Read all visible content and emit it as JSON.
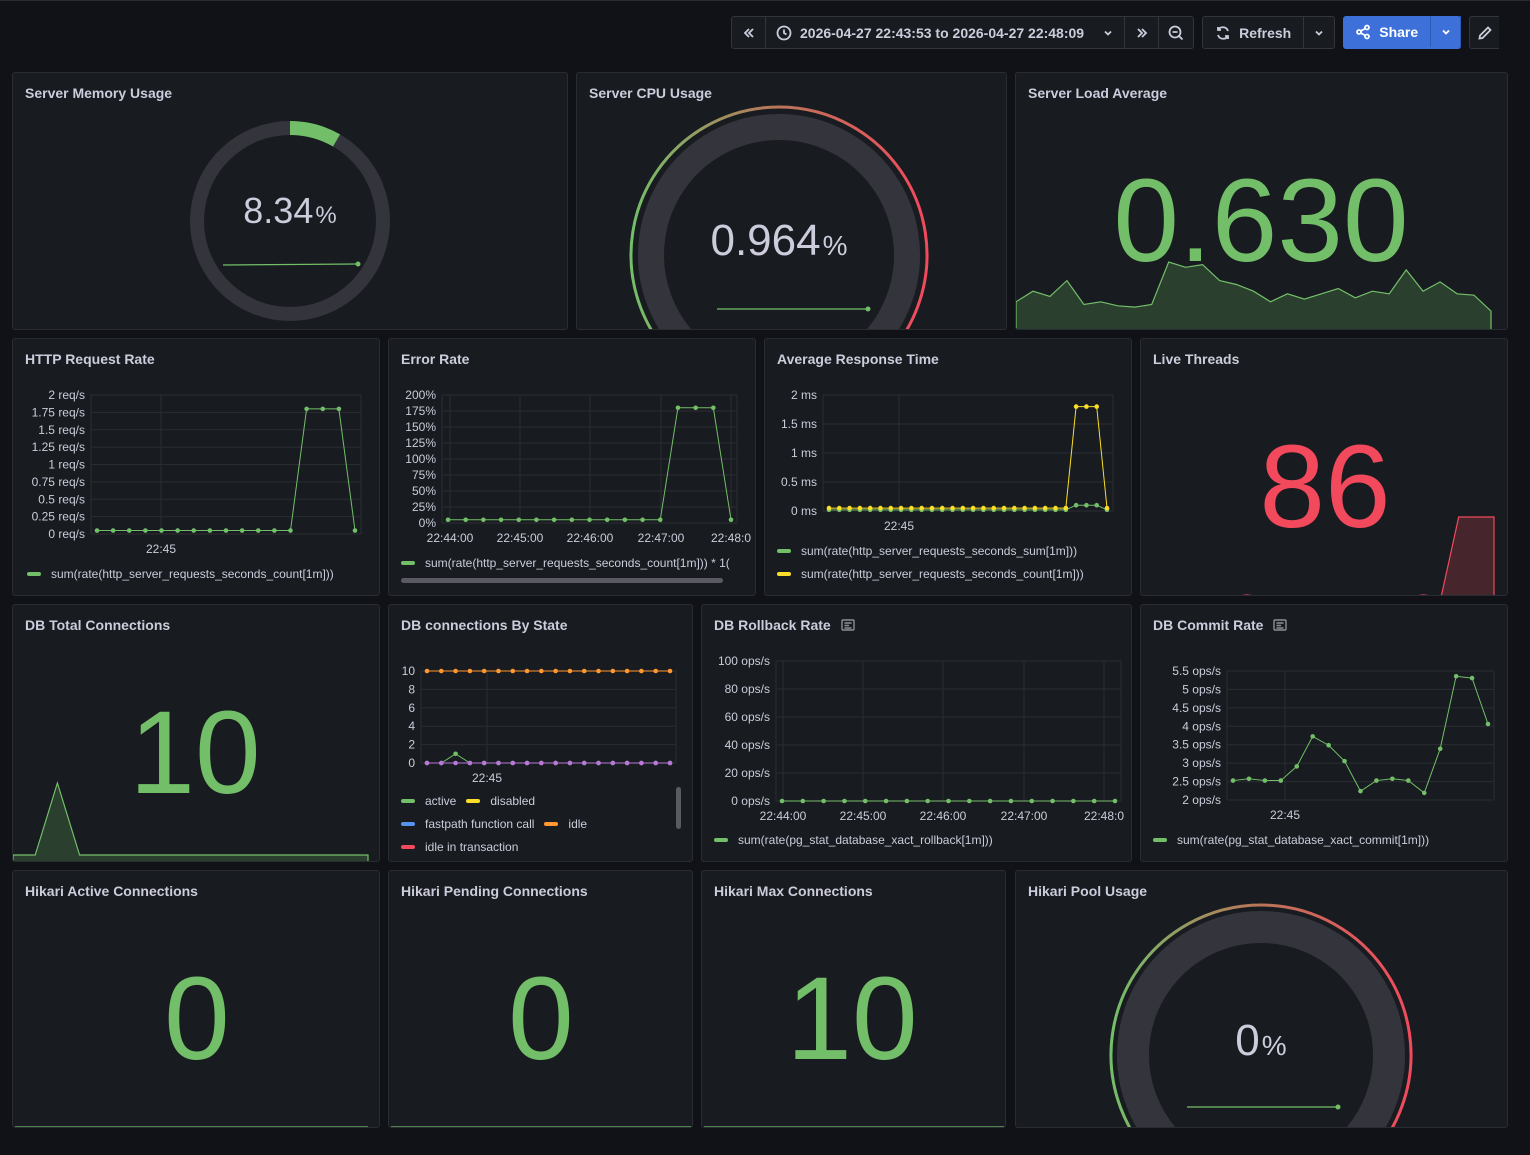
{
  "toolbar": {
    "time_range": "2026-04-27 22:43:53 to 2026-04-27 22:48:09",
    "refresh_label": "Refresh",
    "share_label": "Share",
    "icons": [
      "chevrons-left-icon",
      "clock-icon",
      "chevron-down-icon",
      "chevrons-right-icon",
      "zoom-out-icon",
      "refresh-icon",
      "share-icon",
      "edit-icon"
    ]
  },
  "colors": {
    "green": "#73bf69",
    "red": "#f2495c",
    "yellow": "#fade2a",
    "orange": "#ff9830",
    "purple": "#b877d9",
    "blue": "#5794f2",
    "panel_bg": "#181b1f",
    "page_bg": "#111217"
  },
  "panels": {
    "memory": {
      "title": "Server Memory Usage",
      "value": "8.34",
      "unit": "%",
      "fraction": 0.0834
    },
    "cpu": {
      "title": "Server CPU Usage",
      "value": "0.964",
      "unit": "%",
      "fraction": 0.00964
    },
    "load": {
      "title": "Server Load Average",
      "value": "0.630"
    },
    "http": {
      "title": "HTTP Request Rate",
      "legend": "sum(rate(http_server_requests_seconds_count[1m]))"
    },
    "error": {
      "title": "Error Rate",
      "legend": "sum(rate(http_server_requests_seconds_count[1m])) * 1("
    },
    "resp": {
      "title": "Average Response Time",
      "legend1": "sum(rate(http_server_requests_seconds_sum[1m]))",
      "legend2": "sum(rate(http_server_requests_seconds_count[1m]))"
    },
    "threads": {
      "title": "Live Threads",
      "value": "86"
    },
    "dbtotal": {
      "title": "DB Total Connections",
      "value": "10"
    },
    "dbstate": {
      "title": "DB connections By State",
      "legend": {
        "active": "active",
        "disabled": "disabled",
        "fastpath": "fastpath function call",
        "idle": "idle",
        "idle_tx": "idle in transaction"
      }
    },
    "rollback": {
      "title": "DB Rollback Rate",
      "legend": "sum(rate(pg_stat_database_xact_rollback[1m]))"
    },
    "commit": {
      "title": "DB Commit Rate",
      "legend": "sum(rate(pg_stat_database_xact_commit[1m]))"
    },
    "hikari_active": {
      "title": "Hikari Active Connections",
      "value": "0"
    },
    "hikari_pending": {
      "title": "Hikari Pending Connections",
      "value": "0"
    },
    "hikari_max": {
      "title": "Hikari Max Connections",
      "value": "10"
    },
    "hikari_pool": {
      "title": "Hikari Pool Usage",
      "value": "0",
      "unit": "%",
      "fraction": 0
    }
  },
  "chart_data": [
    {
      "type": "line",
      "panel": "HTTP Request Rate",
      "x_ticks": [
        "22:45"
      ],
      "y_ticks": [
        "2 req/s",
        "1.75 req/s",
        "1.5 req/s",
        "1.25 req/s",
        "1 req/s",
        "0.75 req/s",
        "0.5 req/s",
        "0.25 req/s",
        "0 req/s"
      ],
      "ylim": [
        0,
        2
      ],
      "series": [
        {
          "values": [
            0.05,
            0.05,
            0.05,
            0.05,
            0.05,
            0.05,
            0.05,
            0.05,
            0.05,
            0.05,
            0.05,
            0.05,
            0.05,
            1.8,
            1.8,
            1.8,
            0.05
          ]
        }
      ]
    },
    {
      "type": "line",
      "panel": "Error Rate",
      "x_ticks": [
        "22:44:00",
        "22:45:00",
        "22:46:00",
        "22:47:00",
        "22:48:0"
      ],
      "y_ticks": [
        "200%",
        "175%",
        "150%",
        "125%",
        "100%",
        "75%",
        "50%",
        "25%",
        "0%"
      ],
      "ylim": [
        0,
        200
      ],
      "series": [
        {
          "values": [
            5,
            5,
            5,
            5,
            5,
            5,
            5,
            5,
            5,
            5,
            5,
            5,
            5,
            180,
            180,
            180,
            5
          ]
        }
      ]
    },
    {
      "type": "line",
      "panel": "Average Response Time",
      "x_ticks": [
        "22:45"
      ],
      "y_ticks": [
        "2 ms",
        "1.5 ms",
        "1 ms",
        "0.5 ms",
        "0 ms"
      ],
      "ylim": [
        0,
        2
      ],
      "series": [
        {
          "name": "sum(rate(http_server_requests_seconds_sum[1m]))",
          "values": [
            0.02,
            0.02,
            0.02,
            0.02,
            0.02,
            0.02,
            0.02,
            0.02,
            0.02,
            0.02,
            0.02,
            0.02,
            0.02,
            0.02,
            0.02,
            0.02,
            0.02,
            0.02,
            0.02,
            0.02,
            0.02,
            0.02,
            0.02,
            0.02,
            0.1,
            0.1,
            0.1,
            0.02
          ]
        },
        {
          "name": "sum(rate(http_server_requests_seconds_count[1m]))",
          "values": [
            0.05,
            0.05,
            0.05,
            0.05,
            0.05,
            0.05,
            0.05,
            0.05,
            0.05,
            0.05,
            0.05,
            0.05,
            0.05,
            0.05,
            0.05,
            0.05,
            0.05,
            0.05,
            0.05,
            0.05,
            0.05,
            0.05,
            0.05,
            0.05,
            1.8,
            1.8,
            1.8,
            0.05
          ]
        }
      ]
    },
    {
      "type": "line",
      "panel": "DB connections By State",
      "x_ticks": [
        "22:45"
      ],
      "y_ticks": [
        "10",
        "8",
        "6",
        "4",
        "2",
        "0"
      ],
      "ylim": [
        0,
        10
      ],
      "series": [
        {
          "name": "idle",
          "values": [
            10,
            10,
            10,
            10,
            10,
            10,
            10,
            10,
            10,
            10,
            10,
            10,
            10,
            10,
            10,
            10,
            10,
            10
          ]
        },
        {
          "name": "active",
          "values": [
            0,
            0,
            1,
            0,
            0,
            0,
            0,
            0,
            0,
            0,
            0,
            0,
            0,
            0,
            0,
            0,
            0,
            0
          ]
        },
        {
          "name": "idle in transaction",
          "values": [
            0,
            0,
            0,
            0,
            0,
            0,
            0,
            0,
            0,
            0,
            0,
            0,
            0,
            0,
            0,
            0,
            0,
            0
          ]
        }
      ]
    },
    {
      "type": "line",
      "panel": "DB Rollback Rate",
      "x_ticks": [
        "22:44:00",
        "22:45:00",
        "22:46:00",
        "22:47:00",
        "22:48:0"
      ],
      "y_ticks": [
        "100 ops/s",
        "80 ops/s",
        "60 ops/s",
        "40 ops/s",
        "20 ops/s",
        "0 ops/s"
      ],
      "ylim": [
        0,
        100
      ],
      "series": [
        {
          "values": [
            0,
            0,
            0,
            0,
            0,
            0,
            0,
            0,
            0,
            0,
            0,
            0,
            0,
            0,
            0,
            0,
            0
          ]
        }
      ]
    },
    {
      "type": "line",
      "panel": "DB Commit Rate",
      "x_ticks": [
        "22:45"
      ],
      "y_ticks": [
        "5.5 ops/s",
        "5 ops/s",
        "4.5 ops/s",
        "4 ops/s",
        "3.5 ops/s",
        "3 ops/s",
        "2.5 ops/s",
        "2 ops/s"
      ],
      "ylim": [
        1.85,
        5.5
      ],
      "series": [
        {
          "values": [
            2.4,
            2.45,
            2.4,
            2.4,
            2.8,
            3.65,
            3.4,
            2.95,
            2.1,
            2.4,
            2.45,
            2.4,
            2.05,
            3.3,
            5.35,
            5.3,
            4.0
          ]
        }
      ]
    },
    {
      "type": "area",
      "panel": "Server Load Average",
      "series": [
        {
          "values": [
            0.62,
            0.7,
            0.66,
            0.78,
            0.6,
            0.62,
            0.59,
            0.58,
            0.6,
            0.92,
            0.88,
            0.9,
            0.78,
            0.75,
            0.7,
            0.62,
            0.68,
            0.64,
            0.68,
            0.72,
            0.65,
            0.7,
            0.68,
            0.86,
            0.7,
            0.77,
            0.68,
            0.67,
            0.55
          ]
        }
      ]
    },
    {
      "type": "area",
      "panel": "Live Threads",
      "series": [
        {
          "values": [
            82,
            82,
            82,
            82,
            82,
            82,
            82.1,
            82,
            82,
            82,
            82,
            82,
            82,
            82,
            82,
            82,
            82.1,
            82,
            86,
            86,
            86
          ]
        }
      ]
    },
    {
      "type": "area",
      "panel": "DB Total Connections",
      "series": [
        {
          "values": [
            1,
            1,
            10,
            1,
            1,
            1,
            1,
            1,
            1,
            1,
            1,
            1,
            1,
            1,
            1,
            1,
            1
          ]
        }
      ]
    }
  ]
}
